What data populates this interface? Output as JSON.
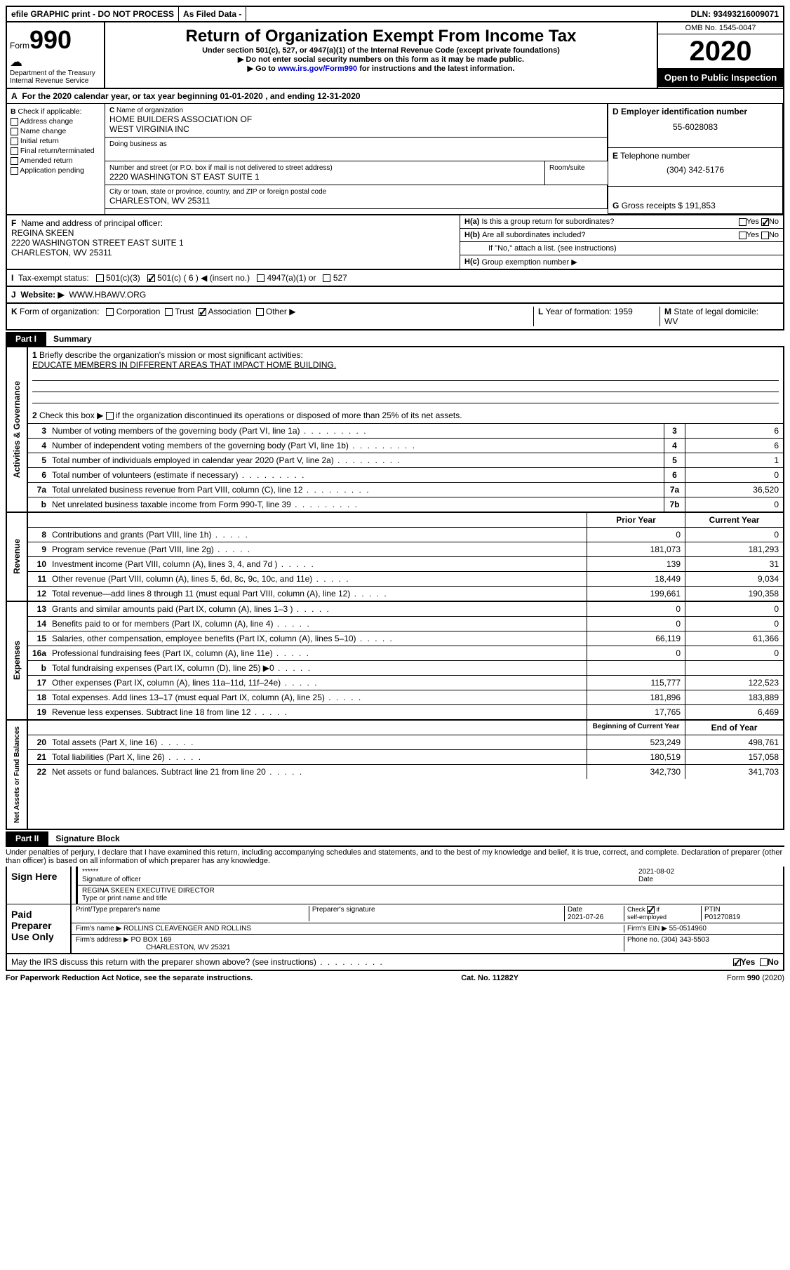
{
  "topbar": {
    "efile": "efile GRAPHIC print - DO NOT PROCESS",
    "asfiled": "As Filed Data -",
    "dln_label": "DLN:",
    "dln": "93493216009071"
  },
  "header": {
    "form_label": "Form",
    "form_no": "990",
    "dept1": "Department of the Treasury",
    "dept2": "Internal Revenue Service",
    "title": "Return of Organization Exempt From Income Tax",
    "sub1": "Under section 501(c), 527, or 4947(a)(1) of the Internal Revenue Code (except private foundations)",
    "sub2": "Do not enter social security numbers on this form as it may be made public.",
    "sub3_pre": "Go to ",
    "sub3_link": "www.irs.gov/Form990",
    "sub3_post": " for instructions and the latest information.",
    "omb": "OMB No. 1545-0047",
    "year": "2020",
    "open": "Open to Public Inspection"
  },
  "A": {
    "text": "For the 2020 calendar year, or tax year beginning 01-01-2020   , and ending 12-31-2020"
  },
  "B": {
    "label": "Check if applicable:",
    "opts": [
      "Address change",
      "Name change",
      "Initial return",
      "Final return/terminated",
      "Amended return",
      "Application pending"
    ]
  },
  "C": {
    "name_label": "Name of organization",
    "name1": "HOME BUILDERS ASSOCIATION OF",
    "name2": "WEST VIRGINIA INC",
    "dba": "Doing business as",
    "street_label": "Number and street (or P.O. box if mail is not delivered to street address)",
    "street": "2220 WASHINGTON ST EAST SUITE 1",
    "room_label": "Room/suite",
    "city_label": "City or town, state or province, country, and ZIP or foreign postal code",
    "city": "CHARLESTON, WV  25311"
  },
  "D": {
    "label": "Employer identification number",
    "val": "55-6028083"
  },
  "E": {
    "label": "Telephone number",
    "val": "(304) 342-5176"
  },
  "G": {
    "label": "Gross receipts $",
    "val": "191,853"
  },
  "F": {
    "label": "Name and address of principal officer:",
    "name": "REGINA SKEEN",
    "addr1": "2220 WASHINGTON STREET EAST SUITE 1",
    "addr2": "CHARLESTON, WV  25311"
  },
  "H": {
    "a": "Is this a group return for subordinates?",
    "b": "Are all subordinates included?",
    "note": "If \"No,\" attach a list. (see instructions)",
    "c": "Group exemption number ▶",
    "yes": "Yes",
    "no": "No"
  },
  "I": {
    "label": "Tax-exempt status:",
    "o1": "501(c)(3)",
    "o2": "501(c) ( 6 ) ◀ (insert no.)",
    "o3": "4947(a)(1) or",
    "o4": "527"
  },
  "J": {
    "label": "Website: ▶",
    "val": "WWW.HBAWV.ORG"
  },
  "K": {
    "label": "Form of organization:",
    "o1": "Corporation",
    "o2": "Trust",
    "o3": "Association",
    "o4": "Other ▶"
  },
  "L": {
    "label": "Year of formation:",
    "val": "1959"
  },
  "M": {
    "label": "State of legal domicile:",
    "val": "WV"
  },
  "part1": {
    "tab": "Part I",
    "title": "Summary",
    "q1": "Briefly describe the organization's mission or most significant activities:",
    "q1v": "EDUCATE MEMBERS IN DIFFERENT AREAS THAT IMPACT HOME BUILDING.",
    "q2": "Check this box ▶        if the organization discontinued its operations or disposed of more than 25% of its net assets.",
    "rows_ag": [
      {
        "n": "3",
        "t": "Number of voting members of the governing body (Part VI, line 1a)",
        "c": "3",
        "v": "6"
      },
      {
        "n": "4",
        "t": "Number of independent voting members of the governing body (Part VI, line 1b)",
        "c": "4",
        "v": "6"
      },
      {
        "n": "5",
        "t": "Total number of individuals employed in calendar year 2020 (Part V, line 2a)",
        "c": "5",
        "v": "1"
      },
      {
        "n": "6",
        "t": "Total number of volunteers (estimate if necessary)",
        "c": "6",
        "v": "0"
      },
      {
        "n": "7a",
        "t": "Total unrelated business revenue from Part VIII, column (C), line 12",
        "c": "7a",
        "v": "36,520"
      },
      {
        "n": "b",
        "t": "Net unrelated business taxable income from Form 990-T, line 39",
        "c": "7b",
        "v": "0"
      }
    ],
    "side_ag": "Activities & Governance",
    "hdr_prior": "Prior Year",
    "hdr_curr": "Current Year",
    "rows_rev": [
      {
        "n": "8",
        "t": "Contributions and grants (Part VIII, line 1h)",
        "p": "0",
        "c": "0"
      },
      {
        "n": "9",
        "t": "Program service revenue (Part VIII, line 2g)",
        "p": "181,073",
        "c": "181,293"
      },
      {
        "n": "10",
        "t": "Investment income (Part VIII, column (A), lines 3, 4, and 7d )",
        "p": "139",
        "c": "31"
      },
      {
        "n": "11",
        "t": "Other revenue (Part VIII, column (A), lines 5, 6d, 8c, 9c, 10c, and 11e)",
        "p": "18,449",
        "c": "9,034"
      },
      {
        "n": "12",
        "t": "Total revenue—add lines 8 through 11 (must equal Part VIII, column (A), line 12)",
        "p": "199,661",
        "c": "190,358"
      }
    ],
    "side_rev": "Revenue",
    "rows_exp": [
      {
        "n": "13",
        "t": "Grants and similar amounts paid (Part IX, column (A), lines 1–3 )",
        "p": "0",
        "c": "0"
      },
      {
        "n": "14",
        "t": "Benefits paid to or for members (Part IX, column (A), line 4)",
        "p": "0",
        "c": "0"
      },
      {
        "n": "15",
        "t": "Salaries, other compensation, employee benefits (Part IX, column (A), lines 5–10)",
        "p": "66,119",
        "c": "61,366"
      },
      {
        "n": "16a",
        "t": "Professional fundraising fees (Part IX, column (A), line 11e)",
        "p": "0",
        "c": "0"
      },
      {
        "n": "b",
        "t": "Total fundraising expenses (Part IX, column (D), line 25) ▶0",
        "p": "",
        "c": ""
      },
      {
        "n": "17",
        "t": "Other expenses (Part IX, column (A), lines 11a–11d, 11f–24e)",
        "p": "115,777",
        "c": "122,523"
      },
      {
        "n": "18",
        "t": "Total expenses. Add lines 13–17 (must equal Part IX, column (A), line 25)",
        "p": "181,896",
        "c": "183,889"
      },
      {
        "n": "19",
        "t": "Revenue less expenses. Subtract line 18 from line 12",
        "p": "17,765",
        "c": "6,469"
      }
    ],
    "side_exp": "Expenses",
    "hdr_beg": "Beginning of Current Year",
    "hdr_end": "End of Year",
    "rows_na": [
      {
        "n": "20",
        "t": "Total assets (Part X, line 16)",
        "p": "523,249",
        "c": "498,761"
      },
      {
        "n": "21",
        "t": "Total liabilities (Part X, line 26)",
        "p": "180,519",
        "c": "157,058"
      },
      {
        "n": "22",
        "t": "Net assets or fund balances. Subtract line 21 from line 20",
        "p": "342,730",
        "c": "341,703"
      }
    ],
    "side_na": "Net Assets or Fund Balances"
  },
  "part2": {
    "tab": "Part II",
    "title": "Signature Block",
    "perjury": "Under penalties of perjury, I declare that I have examined this return, including accompanying schedules and statements, and to the best of my knowledge and belief, it is true, correct, and complete. Declaration of preparer (other than officer) is based on all information of which preparer has any knowledge.",
    "sign_here": "Sign Here",
    "stars": "******",
    "sig_officer": "Signature of officer",
    "date_label": "Date",
    "date1": "2021-08-02",
    "name_title": "REGINA SKEEN  EXECUTIVE DIRECTOR",
    "type_print": "Type or print name and title",
    "paid": "Paid Preparer Use Only",
    "pp_name_label": "Print/Type preparer's name",
    "pp_sig_label": "Preparer's signature",
    "pp_date": "2021-07-26",
    "pp_check": "Check         if self-employed",
    "ptin_label": "PTIN",
    "ptin": "P01270819",
    "firm_name_label": "Firm's name    ▶",
    "firm_name": "ROLLINS CLEAVENGER AND ROLLINS",
    "firm_ein_label": "Firm's EIN ▶",
    "firm_ein": "55-0514960",
    "firm_addr_label": "Firm's address ▶",
    "firm_addr1": "PO BOX 169",
    "firm_addr2": "CHARLESTON, WV  25321",
    "phone_label": "Phone no.",
    "phone": "(304) 343-5503",
    "may_irs": "May the IRS discuss this return with the preparer shown above? (see instructions)"
  },
  "footer": {
    "left": "For Paperwork Reduction Act Notice, see the separate instructions.",
    "mid": "Cat. No. 11282Y",
    "right": "Form 990 (2020)"
  }
}
